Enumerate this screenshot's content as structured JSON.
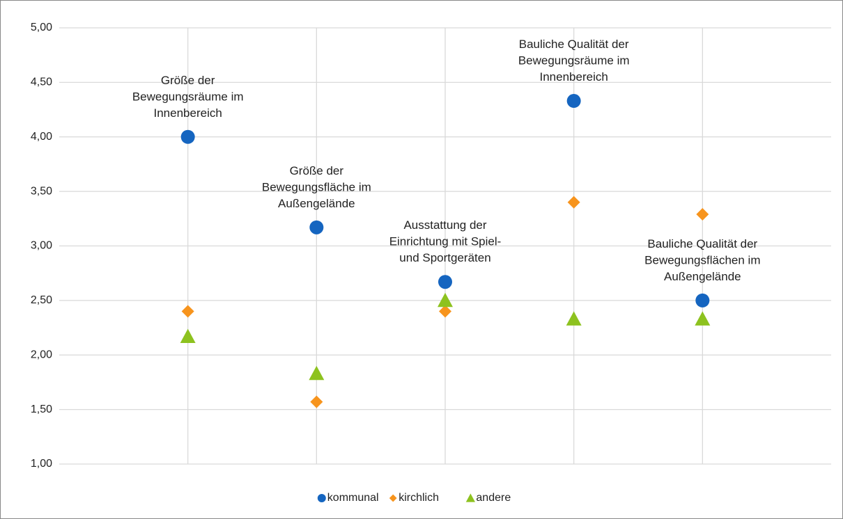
{
  "chart_data": {
    "type": "scatter",
    "categories": [
      "Größe der\nBewegungsräume im\nInnenbereich",
      "Größe der\nBewegungsfläche im\nAußengelände",
      "Ausstattung der\nEinrichtung mit Spiel-\nund Sportgeräten",
      "Bauliche Qualität der\nBewegungsräume im\nInnenbereich",
      "Bauliche Qualität der\nBewegungsflächen im\nAußengelände"
    ],
    "series": [
      {
        "name": "kommunal",
        "color": "#1565c0",
        "marker": "circle",
        "values": [
          4.0,
          3.17,
          2.67,
          4.33,
          2.5
        ]
      },
      {
        "name": "kirchlich",
        "color": "#f7941d",
        "marker": "diamond",
        "values": [
          2.4,
          1.57,
          2.4,
          3.4,
          3.29
        ]
      },
      {
        "name": "andere",
        "color": "#8dc21f",
        "marker": "triangle",
        "values": [
          2.17,
          1.83,
          2.5,
          2.33,
          2.33
        ]
      }
    ],
    "ylim": [
      1,
      5
    ],
    "yticks": [
      {
        "value": 1,
        "label": "1,00"
      },
      {
        "value": 1.5,
        "label": "1,50"
      },
      {
        "value": 2,
        "label": "2,00"
      },
      {
        "value": 2.5,
        "label": "2,50"
      },
      {
        "value": 3,
        "label": "3,00"
      },
      {
        "value": 3.5,
        "label": "3,50"
      },
      {
        "value": 4,
        "label": "4,00"
      },
      {
        "value": 4.5,
        "label": "4,50"
      },
      {
        "value": 5,
        "label": "5,00"
      }
    ],
    "grid": true,
    "legend": "bottom"
  }
}
